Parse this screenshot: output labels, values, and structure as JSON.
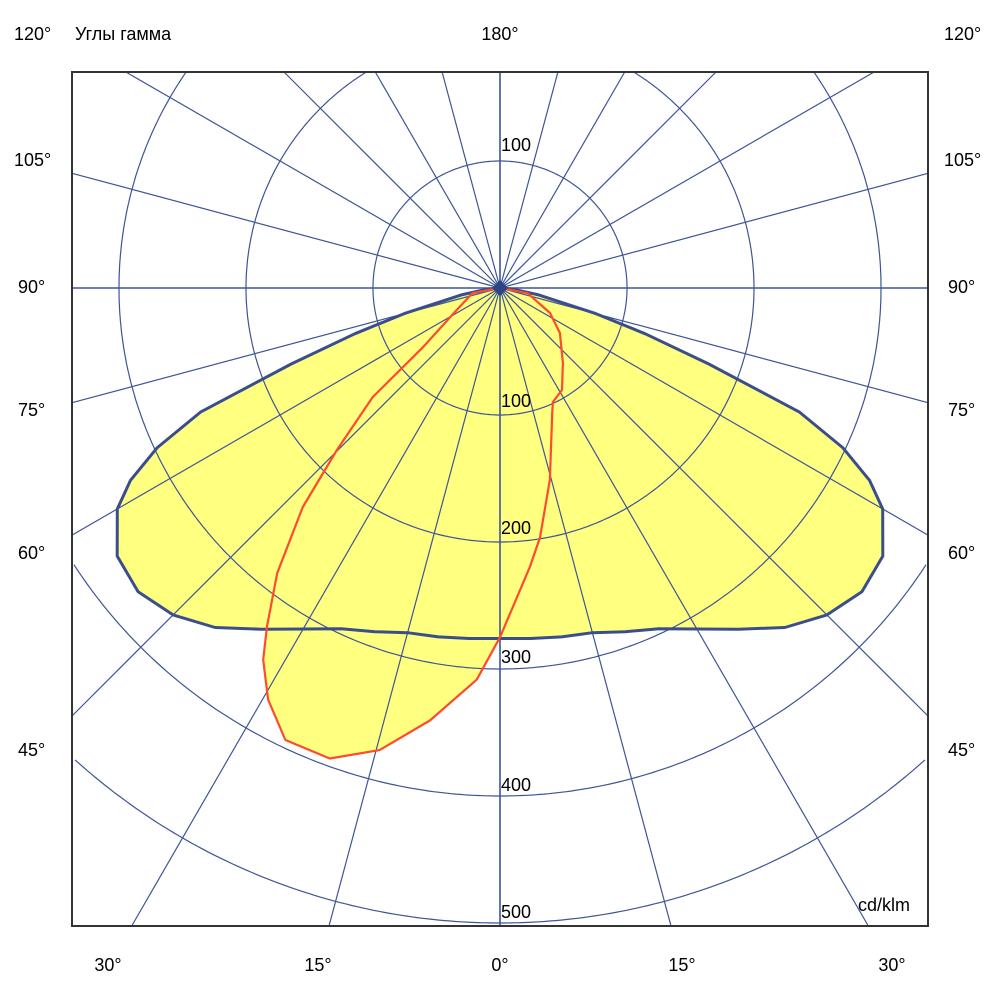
{
  "chart_data": {
    "type": "polar",
    "title": "",
    "angle_axis_label": "Углы гамма",
    "unit_label": "cd/klm",
    "radial_ticks": [
      100,
      200,
      300,
      400,
      500
    ],
    "radial_top_label": "100",
    "radial_labels": [
      "100",
      "200",
      "300",
      "400",
      "500"
    ],
    "top_angle_label": "180°",
    "side_angle_labels": [
      "120°",
      "105°",
      "90°",
      "75°",
      "60°",
      "45°"
    ],
    "bottom_angle_labels": [
      "30°",
      "15°",
      "0°",
      "15°",
      "30°"
    ],
    "grid_step_deg": 15,
    "grid": true,
    "colors": {
      "grid": "#3d5597",
      "fill": "#ffff80",
      "series_1": "#3a4e8c",
      "series_2": "#ff4a2e"
    },
    "series": [
      {
        "gamma": [
          -90,
          -85,
          -80,
          -75,
          -72.5,
          -70,
          -67.5,
          -65,
          -62.5,
          -60,
          -55,
          -50,
          -45,
          -40,
          -35,
          -30,
          -25,
          -20,
          -15,
          -10,
          -5,
          0,
          5,
          10,
          15,
          20,
          25,
          30,
          35,
          40,
          45,
          50,
          55,
          60,
          62.5,
          65,
          67.5,
          70,
          72.5,
          75,
          80,
          85,
          90
        ],
        "values": [
          0,
          10,
          30,
          78,
          120,
          175,
          255,
          298,
          328,
          348,
          368,
          372,
          364,
          349,
          328,
          310,
          296,
          288,
          281,
          279,
          277,
          276,
          277,
          279,
          281,
          288,
          296,
          310,
          328,
          349,
          364,
          372,
          368,
          348,
          328,
          298,
          255,
          175,
          120,
          78,
          30,
          10,
          0
        ]
      },
      {
        "gamma": [
          -90,
          -79.5,
          -62,
          -52.5,
          -49.4,
          -45.2,
          -42,
          -38,
          -34.5,
          -32.5,
          -29.4,
          -25.4,
          -19.9,
          -14.6,
          -9.2,
          -3.4,
          0,
          6.1,
          9.1,
          14.6,
          22.6,
          24.9,
          31.3,
          40,
          53.1,
          63.4,
          79.5,
          90
        ],
        "values": [
          0,
          22,
          40,
          76,
          132,
          181,
          232,
          285,
          324,
          347,
          372,
          394,
          394,
          376,
          345,
          309,
          275,
          221,
          199,
          156,
          107,
          99,
          94,
          77,
          59,
          44,
          22,
          0
        ]
      }
    ]
  }
}
